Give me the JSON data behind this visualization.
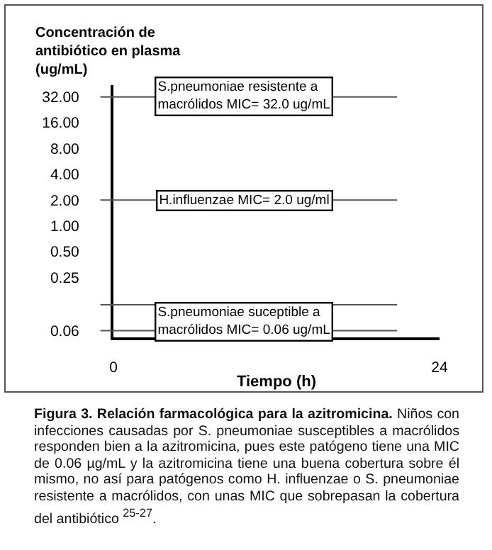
{
  "chart_data": {
    "type": "line",
    "ylabel": "Concentración de\nantibiótico en plasma\n(ug/mL)",
    "xlabel": "Tiempo (h)",
    "log": "y",
    "xlim": [
      0,
      24
    ],
    "xticks": [
      0,
      24
    ],
    "ylim": [
      0.05,
      44
    ],
    "yticks": [
      {
        "value": 32,
        "label": "32.00"
      },
      {
        "value": 16,
        "label": "16.00"
      },
      {
        "value": 8,
        "label": "8.00"
      },
      {
        "value": 4,
        "label": "4.00"
      },
      {
        "value": 2,
        "label": "2.00"
      },
      {
        "value": 1,
        "label": "1.00"
      },
      {
        "value": 0.5,
        "label": "0.50"
      },
      {
        "value": 0.25,
        "label": "0.25"
      },
      {
        "value": 0.06,
        "label": "0.06"
      }
    ],
    "grid": false,
    "ref_lines": [
      {
        "axis": "y",
        "value": 32,
        "label": "S.pneumoniae resistente a macrólidos MIC= 32.0 ug/mL"
      },
      {
        "axis": "y",
        "value": 2,
        "label": "H.influenzae MIC= 2.0 ug/ml"
      },
      {
        "axis": "y",
        "value": 0.12,
        "label": null
      },
      {
        "axis": "y",
        "value": 0.06,
        "label": "S.pneumoniae suceptible a macrólidos MIC= 0.06 ug/mL"
      }
    ],
    "annotations": [
      "Figura 3. Relación farmacológica para la azitromicina.",
      "Niños con infecciones causadas por S. pneumoniae susceptibles a macrólidos responden bien a la azitromicina, pues este patógeno tiene una MIC de 0.06 µg/mL y la azitromicina tiene una buena cobertura sobre él mismo, no así para patógenos como H. influenzae o S. pneumoniae resistente a macrólidos, con unas MIC que sobrepasan la cobertura del antibiótico $^{25-27}$."
    ]
  }
}
